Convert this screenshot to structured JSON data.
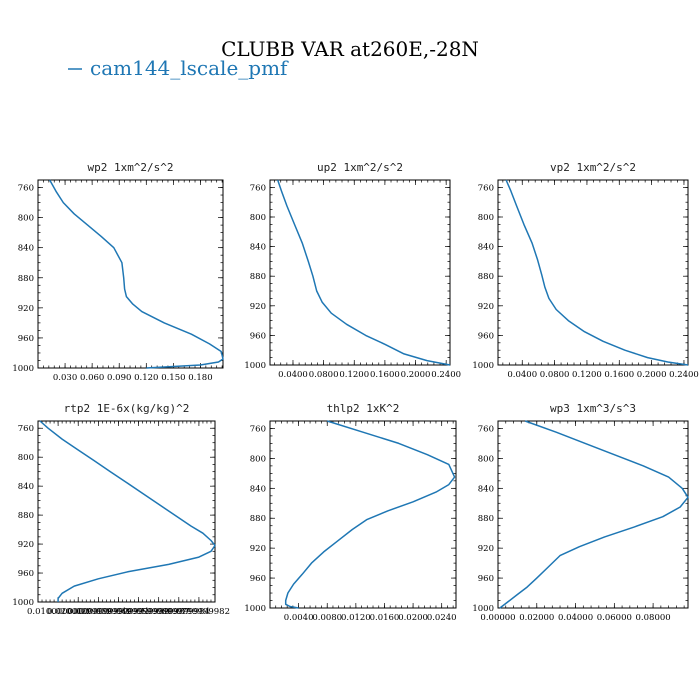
{
  "figure": {
    "title": "CLUBB VAR at260E,-28N",
    "legend": {
      "label": "cam144_lscale_pmf",
      "color": "#1f77b4"
    }
  },
  "chart_data": [
    {
      "type": "line",
      "title": "wp2   1xm^2/s^2",
      "xlim": [
        0.0,
        0.205
      ],
      "ylim": [
        1000,
        750
      ],
      "x_ticks": [
        0.03,
        0.06,
        0.09,
        0.12,
        0.15,
        0.18
      ],
      "x_tick_labels": [
        "0.030",
        "0.060",
        "0.090",
        "0.120",
        "0.150",
        "0.180"
      ],
      "y_ticks": [
        760,
        800,
        840,
        880,
        920,
        960,
        1000
      ],
      "y_tick_labels": [
        "760",
        "800",
        "840",
        "880",
        "920",
        "960",
        "1000"
      ],
      "x": [
        0.013,
        0.02,
        0.028,
        0.04,
        0.055,
        0.07,
        0.084,
        0.093,
        0.095,
        0.096,
        0.098,
        0.105,
        0.115,
        0.14,
        0.17,
        0.19,
        0.203,
        0.205,
        0.2,
        0.18,
        0.15,
        0.12
      ],
      "y": [
        750,
        765,
        780,
        795,
        810,
        825,
        840,
        860,
        880,
        895,
        905,
        915,
        925,
        940,
        955,
        968,
        978,
        988,
        992,
        996,
        998,
        1000
      ]
    },
    {
      "type": "line",
      "title": "up2   1xm^2/s^2",
      "xlim": [
        0.01,
        0.245
      ],
      "ylim": [
        1000,
        750
      ],
      "x_ticks": [
        0.04,
        0.08,
        0.12,
        0.16,
        0.2,
        0.24
      ],
      "x_tick_labels": [
        "0.0400",
        "0.0800",
        "0.1200",
        "0.1600",
        "0.2000",
        "0.2400"
      ],
      "y_ticks": [
        760,
        800,
        840,
        880,
        920,
        960,
        1000
      ],
      "y_tick_labels": [
        "760",
        "800",
        "840",
        "880",
        "920",
        "960",
        "1000"
      ],
      "x": [
        0.02,
        0.025,
        0.032,
        0.042,
        0.052,
        0.06,
        0.066,
        0.071,
        0.078,
        0.09,
        0.11,
        0.135,
        0.16,
        0.185,
        0.215,
        0.245
      ],
      "y": [
        750,
        765,
        785,
        810,
        835,
        860,
        880,
        900,
        915,
        930,
        945,
        960,
        972,
        985,
        994,
        1000
      ]
    },
    {
      "type": "line",
      "title": "vp2   1xm^2/s^2",
      "xlim": [
        0.01,
        0.245
      ],
      "ylim": [
        1000,
        750
      ],
      "x_ticks": [
        0.04,
        0.08,
        0.12,
        0.16,
        0.2,
        0.24
      ],
      "x_tick_labels": [
        "0.0400",
        "0.0800",
        "0.1200",
        "0.1600",
        "0.2000",
        "0.2400"
      ],
      "y_ticks": [
        760,
        800,
        840,
        880,
        920,
        960,
        1000
      ],
      "y_tick_labels": [
        "760",
        "800",
        "840",
        "880",
        "920",
        "960",
        "1000"
      ],
      "x": [
        0.02,
        0.026,
        0.033,
        0.042,
        0.052,
        0.059,
        0.064,
        0.068,
        0.073,
        0.082,
        0.097,
        0.117,
        0.14,
        0.167,
        0.195,
        0.22,
        0.245
      ],
      "y": [
        750,
        765,
        785,
        810,
        835,
        858,
        878,
        895,
        910,
        925,
        940,
        955,
        968,
        980,
        990,
        996,
        1000
      ]
    },
    {
      "type": "line",
      "title": "rtp2   1E-6x(kg/kg)^2",
      "xlim": [
        0.0,
        0.088
      ],
      "ylim": [
        1000,
        750
      ],
      "x_ticks": [
        0.01,
        0.02,
        0.03,
        0.04,
        0.05,
        0.06,
        0.07,
        0.08
      ],
      "x_tick_labels": [
        "0.0100000000",
        "0.0200000000",
        "0.0299999993",
        "0.0399999991",
        "0.0499999989",
        "0.0599999987",
        "0.0699999984",
        "0.0799999982"
      ],
      "y_ticks": [
        760,
        800,
        840,
        880,
        920,
        960,
        1000
      ],
      "y_tick_labels": [
        "760",
        "800",
        "840",
        "880",
        "920",
        "960",
        "1000"
      ],
      "x": [
        0.001,
        0.005,
        0.012,
        0.02,
        0.028,
        0.036,
        0.044,
        0.052,
        0.06,
        0.068,
        0.076,
        0.082,
        0.086,
        0.088,
        0.086,
        0.08,
        0.065,
        0.045,
        0.03,
        0.018,
        0.012,
        0.01,
        0.01
      ],
      "y": [
        750,
        760,
        775,
        790,
        805,
        820,
        835,
        850,
        865,
        880,
        895,
        905,
        915,
        922,
        930,
        938,
        948,
        958,
        968,
        978,
        988,
        995,
        1000
      ]
    },
    {
      "type": "line",
      "title": "thlp2   1xK^2",
      "xlim": [
        0.0,
        0.026
      ],
      "ylim": [
        1000,
        750
      ],
      "x_ticks": [
        0.004,
        0.008,
        0.012,
        0.016,
        0.02,
        0.024
      ],
      "x_tick_labels": [
        "0.0040",
        "0.0080",
        "0.0120",
        "0.0160",
        "0.0200",
        "0.0240"
      ],
      "y_ticks": [
        760,
        800,
        840,
        880,
        920,
        960,
        1000
      ],
      "y_tick_labels": [
        "760",
        "800",
        "840",
        "880",
        "920",
        "960",
        "1000"
      ],
      "x": [
        0.008,
        0.013,
        0.018,
        0.022,
        0.025,
        0.0258,
        0.025,
        0.0232,
        0.02,
        0.0165,
        0.0135,
        0.0115,
        0.0095,
        0.0075,
        0.0058,
        0.0045,
        0.0033,
        0.0025,
        0.0022,
        0.0022,
        0.0028,
        0.004
      ],
      "y": [
        750,
        765,
        780,
        795,
        808,
        825,
        835,
        845,
        858,
        870,
        882,
        895,
        910,
        925,
        940,
        955,
        968,
        980,
        990,
        995,
        998,
        1000
      ]
    },
    {
      "type": "line",
      "title": "wp3   1xm^3/s^3",
      "xlim": [
        0.0,
        0.098
      ],
      "ylim": [
        1000,
        750
      ],
      "x_ticks": [
        0.0,
        0.02,
        0.04,
        0.06,
        0.08
      ],
      "x_tick_labels": [
        "0.00000",
        "0.02000",
        "0.04000",
        "0.06000",
        "0.08000"
      ],
      "y_ticks": [
        760,
        800,
        840,
        880,
        920,
        960,
        1000
      ],
      "y_tick_labels": [
        "760",
        "800",
        "840",
        "880",
        "920",
        "960",
        "1000"
      ],
      "x": [
        0.014,
        0.03,
        0.045,
        0.06,
        0.075,
        0.088,
        0.095,
        0.098,
        0.094,
        0.085,
        0.07,
        0.055,
        0.042,
        0.032,
        0.026,
        0.02,
        0.015,
        0.01,
        0.005,
        0.001
      ],
      "y": [
        750,
        765,
        780,
        795,
        810,
        825,
        840,
        852,
        865,
        878,
        892,
        905,
        918,
        930,
        945,
        960,
        972,
        982,
        992,
        1000
      ]
    }
  ]
}
